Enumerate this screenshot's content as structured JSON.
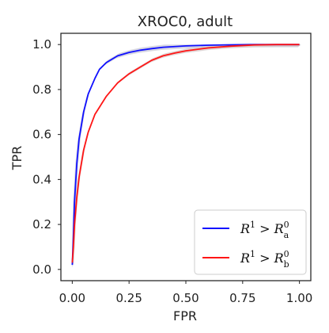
{
  "chart_data": {
    "type": "line",
    "title": "XROC0, adult",
    "xlabel": "FPR",
    "ylabel": "TPR",
    "xlim": [
      -0.05,
      1.05
    ],
    "ylim": [
      -0.05,
      1.05
    ],
    "xticks": [
      0.0,
      0.25,
      0.5,
      0.75,
      1.0
    ],
    "xtick_labels": [
      "0.00",
      "0.25",
      "0.50",
      "0.75",
      "1.00"
    ],
    "yticks": [
      0.0,
      0.2,
      0.4,
      0.6,
      0.8,
      1.0
    ],
    "ytick_labels": [
      "0.0",
      "0.2",
      "0.4",
      "0.6",
      "0.8",
      "1.0"
    ],
    "grid": false,
    "legend_position": "lower-right",
    "series": [
      {
        "name": "R^1 > R_a^0",
        "legend": {
          "base": "R",
          "sup1": "1",
          "op": ">",
          "base2": "R",
          "sub2": "a",
          "sup2": "0"
        },
        "color": "#1010ff",
        "band_color": "#c8c8d8",
        "x": [
          0.0,
          0.005,
          0.01,
          0.02,
          0.03,
          0.05,
          0.07,
          0.1,
          0.12,
          0.15,
          0.2,
          0.25,
          0.3,
          0.35,
          0.4,
          0.5,
          0.6,
          0.7,
          0.8,
          0.9,
          1.0
        ],
        "y": [
          0.02,
          0.15,
          0.3,
          0.47,
          0.58,
          0.7,
          0.78,
          0.85,
          0.89,
          0.92,
          0.95,
          0.965,
          0.975,
          0.982,
          0.988,
          0.994,
          0.997,
          0.999,
          1.0,
          1.0,
          1.0
        ],
        "band": 0.012
      },
      {
        "name": "R^1 > R_b^0",
        "legend": {
          "base": "R",
          "sup1": "1",
          "op": ">",
          "base2": "R",
          "sub2": "b",
          "sup2": "0"
        },
        "color": "#ff1515",
        "band_color": "#d6c8c8",
        "x": [
          0.0,
          0.005,
          0.01,
          0.02,
          0.03,
          0.05,
          0.07,
          0.1,
          0.15,
          0.2,
          0.25,
          0.3,
          0.35,
          0.4,
          0.45,
          0.5,
          0.6,
          0.7,
          0.8,
          0.9,
          1.0
        ],
        "y": [
          0.03,
          0.1,
          0.2,
          0.32,
          0.41,
          0.53,
          0.61,
          0.69,
          0.77,
          0.83,
          0.87,
          0.9,
          0.93,
          0.95,
          0.962,
          0.972,
          0.985,
          0.993,
          0.998,
          1.0,
          1.0
        ],
        "band": 0.01
      }
    ]
  }
}
